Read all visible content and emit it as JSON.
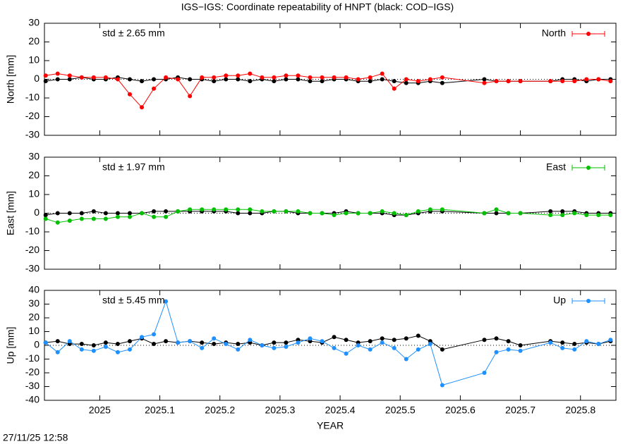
{
  "title": "IGS−IGS: Coordinate repeatability of HNPT (black: COD−IGS)",
  "timestamp": "27/11/25 12:58",
  "chart_data": [
    {
      "type": "line",
      "ylabel": "North [mm]",
      "annotation": "std ± 2.65 mm",
      "xlim": [
        2024.908,
        2025.859
      ],
      "ylim": [
        -30,
        30
      ],
      "yticks": [
        -30,
        -20,
        -10,
        0,
        10,
        20,
        30
      ],
      "xticks": [
        2025,
        2025.1,
        2025.2,
        2025.3,
        2025.4,
        2025.5,
        2025.6,
        2025.7,
        2025.8
      ],
      "xtick_labels": false,
      "zeroaxis": true,
      "legend": "upper right",
      "x": [
        2024.91,
        2024.93,
        2024.95,
        2024.97,
        2024.99,
        2025.01,
        2025.03,
        2025.05,
        2025.07,
        2025.09,
        2025.11,
        2025.13,
        2025.15,
        2025.17,
        2025.19,
        2025.21,
        2025.23,
        2025.25,
        2025.27,
        2025.29,
        2025.31,
        2025.33,
        2025.35,
        2025.37,
        2025.39,
        2025.41,
        2025.43,
        2025.45,
        2025.47,
        2025.49,
        2025.51,
        2025.53,
        2025.55,
        2025.57,
        2025.64,
        2025.66,
        2025.68,
        2025.7,
        2025.75,
        2025.77,
        2025.79,
        2025.81,
        2025.83,
        2025.85
      ],
      "series": [
        {
          "color": "#000000",
          "values": [
            -1,
            0,
            0,
            1,
            0,
            0,
            1,
            0,
            -1,
            0,
            0,
            1,
            0,
            0,
            -1,
            0,
            0,
            -1,
            0,
            -1,
            0,
            0,
            -1,
            -1,
            0,
            0,
            -1,
            -1,
            0,
            -1,
            -2,
            -2,
            -1,
            -2,
            0,
            -1,
            -1,
            -1,
            -1,
            0,
            0,
            -1,
            0,
            0
          ]
        },
        {
          "name": "North",
          "color": "#ff0000",
          "values": [
            2,
            3,
            2,
            1,
            1,
            1,
            0,
            -8,
            -15,
            -5,
            1,
            0,
            -9,
            1,
            1,
            2,
            2,
            3,
            1,
            1,
            2,
            2,
            1,
            1,
            1,
            1,
            0,
            1,
            3,
            -5,
            0,
            -1,
            0,
            1,
            -2,
            -1,
            -1,
            -1,
            -1,
            -1,
            -1,
            0,
            0,
            -1
          ]
        }
      ]
    },
    {
      "type": "line",
      "ylabel": "East [mm]",
      "annotation": "std ± 1.97 mm",
      "xlim": [
        2024.908,
        2025.859
      ],
      "ylim": [
        -30,
        30
      ],
      "yticks": [
        -30,
        -20,
        -10,
        0,
        10,
        20,
        30
      ],
      "xticks": [
        2025,
        2025.1,
        2025.2,
        2025.3,
        2025.4,
        2025.5,
        2025.6,
        2025.7,
        2025.8
      ],
      "xtick_labels": false,
      "zeroaxis": true,
      "legend": "upper right",
      "x": [
        2024.91,
        2024.93,
        2024.95,
        2024.97,
        2024.99,
        2025.01,
        2025.03,
        2025.05,
        2025.07,
        2025.09,
        2025.11,
        2025.13,
        2025.15,
        2025.17,
        2025.19,
        2025.21,
        2025.23,
        2025.25,
        2025.27,
        2025.29,
        2025.31,
        2025.33,
        2025.35,
        2025.37,
        2025.39,
        2025.41,
        2025.43,
        2025.45,
        2025.47,
        2025.49,
        2025.51,
        2025.53,
        2025.55,
        2025.57,
        2025.64,
        2025.66,
        2025.68,
        2025.7,
        2025.75,
        2025.77,
        2025.79,
        2025.81,
        2025.83,
        2025.85
      ],
      "series": [
        {
          "color": "#000000",
          "values": [
            -1,
            0,
            0,
            0,
            1,
            0,
            0,
            0,
            0,
            1,
            1,
            1,
            1,
            1,
            1,
            1,
            0,
            0,
            0,
            1,
            1,
            0,
            0,
            0,
            0,
            1,
            0,
            0,
            0,
            -1,
            -1,
            0,
            1,
            1,
            0,
            0,
            0,
            0,
            1,
            1,
            1,
            0,
            0,
            0
          ]
        },
        {
          "name": "East",
          "color": "#00c000",
          "values": [
            -3,
            -5,
            -4,
            -3,
            -3,
            -3,
            -2,
            -2,
            0,
            -2,
            -2,
            1,
            2,
            2,
            2,
            2,
            2,
            2,
            1,
            1,
            1,
            1,
            0,
            0,
            -1,
            0,
            0,
            0,
            1,
            0,
            -1,
            1,
            2,
            2,
            0,
            2,
            0,
            0,
            -1,
            -1,
            0,
            -1,
            -1,
            -1
          ]
        }
      ]
    },
    {
      "type": "line",
      "ylabel": "Up [mm]",
      "annotation": "std ± 5.45 mm",
      "xlabel": "YEAR",
      "xlim": [
        2024.908,
        2025.859
      ],
      "ylim": [
        -40,
        40
      ],
      "yticks": [
        -40,
        -30,
        -20,
        -10,
        0,
        10,
        20,
        30,
        40
      ],
      "xticks": [
        2025,
        2025.1,
        2025.2,
        2025.3,
        2025.4,
        2025.5,
        2025.6,
        2025.7,
        2025.8
      ],
      "xtick_labels": true,
      "zeroaxis": true,
      "legend": "upper right",
      "x": [
        2024.91,
        2024.93,
        2024.95,
        2024.97,
        2024.99,
        2025.01,
        2025.03,
        2025.05,
        2025.07,
        2025.09,
        2025.11,
        2025.13,
        2025.15,
        2025.17,
        2025.19,
        2025.21,
        2025.23,
        2025.25,
        2025.27,
        2025.29,
        2025.31,
        2025.33,
        2025.35,
        2025.37,
        2025.39,
        2025.41,
        2025.43,
        2025.45,
        2025.47,
        2025.49,
        2025.51,
        2025.53,
        2025.55,
        2025.57,
        2025.64,
        2025.66,
        2025.68,
        2025.7,
        2025.75,
        2025.77,
        2025.79,
        2025.81,
        2025.83,
        2025.85
      ],
      "series": [
        {
          "color": "#000000",
          "values": [
            2,
            3,
            1,
            1,
            0,
            2,
            1,
            3,
            5,
            1,
            3,
            2,
            3,
            2,
            1,
            2,
            1,
            2,
            0,
            2,
            2,
            4,
            3,
            2,
            6,
            4,
            2,
            3,
            5,
            4,
            5,
            7,
            3,
            -3,
            4,
            5,
            3,
            0,
            3,
            2,
            1,
            2,
            1,
            3
          ]
        },
        {
          "name": "Up",
          "color": "#1e90ff",
          "values": [
            2,
            -5,
            3,
            -3,
            -4,
            -1,
            -5,
            -3,
            6,
            8,
            32,
            2,
            3,
            -2,
            5,
            1,
            -3,
            4,
            0,
            -2,
            -1,
            2,
            5,
            3,
            -2,
            -6,
            0,
            -3,
            2,
            -2,
            -10,
            -3,
            1,
            -29,
            -20,
            -5,
            -3,
            -4,
            2,
            -2,
            -3,
            3,
            1,
            4
          ]
        }
      ]
    }
  ]
}
